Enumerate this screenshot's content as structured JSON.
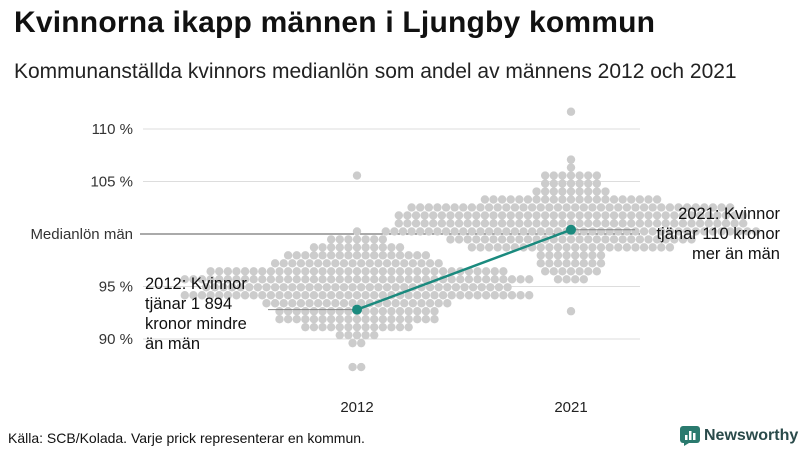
{
  "title": "Kvinnorna ikapp männen i Ljungby kommun",
  "subtitle": "Kommunanställda kvinnors medianlön som andel av männens 2012 och 2021",
  "source": "Källa: SCB/Kolada. Varje prick representerar en kommun.",
  "brand": {
    "name": "Newsworthy",
    "icon": "newsworthy-logo-icon",
    "color": "#2a7a6e"
  },
  "chart_data": {
    "type": "scatter",
    "categories": [
      "2012",
      "2021"
    ],
    "y_unit": "%",
    "ylim": [
      86,
      112
    ],
    "y_ticks": [
      {
        "value": 90,
        "label": "90 %"
      },
      {
        "value": 95,
        "label": "95 %"
      },
      {
        "value": 100,
        "label": "Medianlön män"
      },
      {
        "value": 105,
        "label": "105 %"
      },
      {
        "value": 110,
        "label": "110 %"
      }
    ],
    "grid": true,
    "distribution_summary": [
      {
        "year": "2012",
        "min": 87,
        "max": 105.5
      },
      {
        "year": "2021",
        "min": 92.5,
        "max": 111.5
      }
    ],
    "highlight": {
      "name": "Ljungby",
      "color": "#1a8a7e",
      "points": [
        {
          "x": "2012",
          "y": 92.8
        },
        {
          "x": "2021",
          "y": 100.4
        }
      ]
    },
    "annotations": [
      {
        "year": "2012",
        "lines": [
          "2012: Kvinnor",
          "tjänar 1 894",
          "kronor mindre",
          "än män"
        ]
      },
      {
        "year": "2021",
        "lines": [
          "2021: Kvinnor",
          "tjänar 110 kronor",
          "mer än män"
        ]
      }
    ],
    "dot_color": "#cccccc"
  }
}
